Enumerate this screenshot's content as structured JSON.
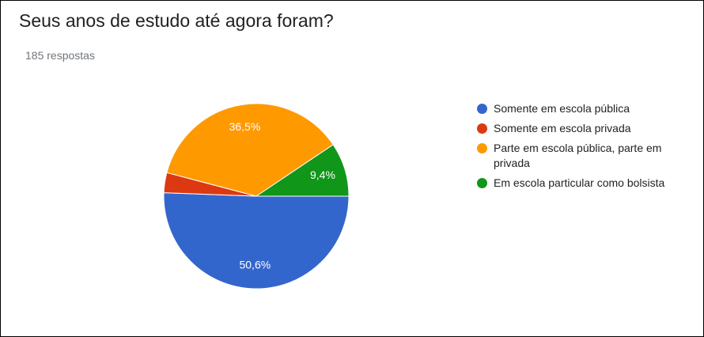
{
  "chart_data": {
    "type": "pie",
    "title": "Seus anos de estudo até agora foram?",
    "subtitle": "185 respostas",
    "categories": [
      "Somente em escola pública",
      "Somente em escola privada",
      "Parte em escola pública, parte em privada",
      "Em escola particular como bolsista"
    ],
    "values": [
      50.6,
      3.5,
      36.5,
      9.4
    ],
    "value_labels": [
      "50,6%",
      null,
      "36,5%",
      "9,4%"
    ],
    "colors": [
      "#3366cc",
      "#dc3912",
      "#ff9900",
      "#109618"
    ]
  }
}
